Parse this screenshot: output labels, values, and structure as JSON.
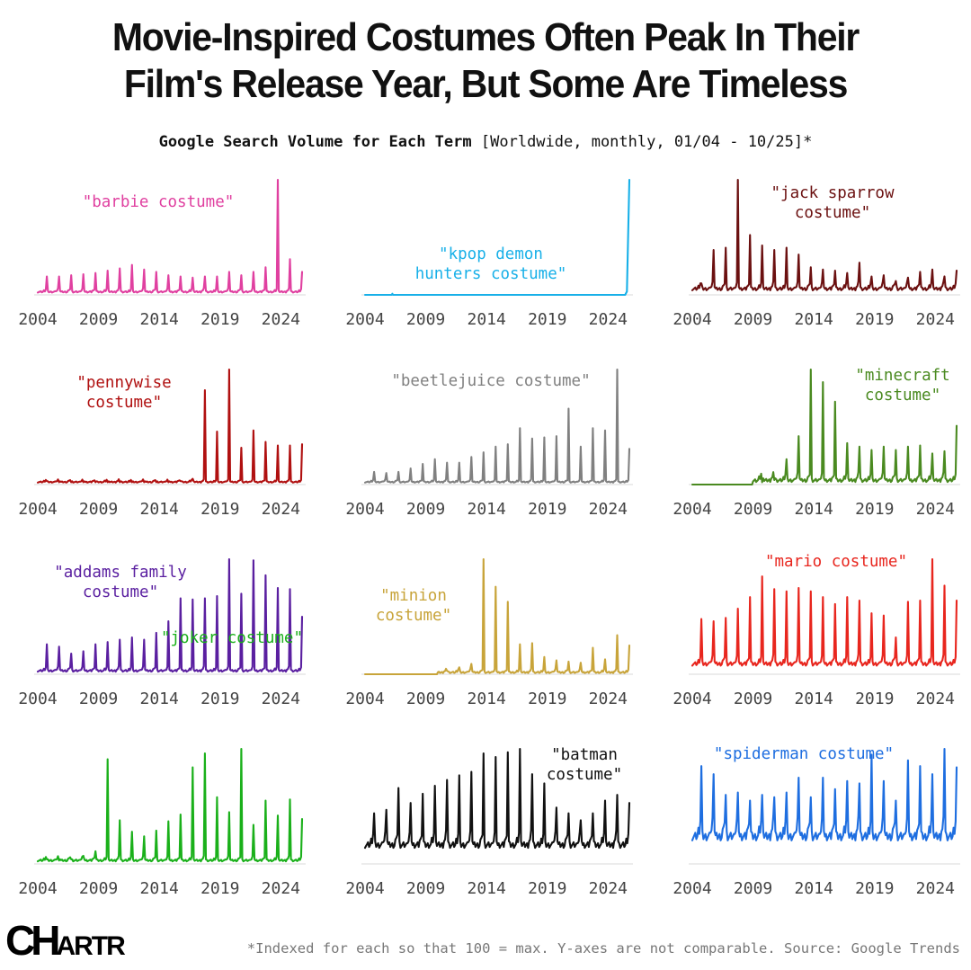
{
  "header": {
    "title_line1": "Movie-Inspired Costumes Often Peak In Their",
    "title_line2": "Film's Release Year, But Some Are Timeless",
    "subtitle_bold": "Google Search Volume for Each Term",
    "subtitle_rest": "[Worldwide, monthly, 01/04 - 10/25]*"
  },
  "footer": {
    "logo_lead": "CH",
    "logo_tail": "ARTR",
    "note": "*Indexed for each so that 100 = max. Y-axes are not comparable. Source: Google Trends"
  },
  "chart_data": [
    {
      "type": "line",
      "title": "\"barbie costume\"",
      "label_lines": [
        "\"barbie costume\""
      ],
      "color": "#e040a0",
      "x": [
        2004,
        2024.5,
        2025.8
      ],
      "ylim": [
        0,
        100
      ],
      "baseline_value": 1,
      "seasonal": true,
      "x_ticks": [
        2004,
        2009,
        2014,
        2019,
        2024
      ],
      "peaks": [
        [
          2004,
          16
        ],
        [
          2005,
          16
        ],
        [
          2006,
          17
        ],
        [
          2007,
          18
        ],
        [
          2008,
          19
        ],
        [
          2009,
          21
        ],
        [
          2010,
          23
        ],
        [
          2011,
          26
        ],
        [
          2012,
          22
        ],
        [
          2013,
          20
        ],
        [
          2014,
          17
        ],
        [
          2015,
          16
        ],
        [
          2016,
          15
        ],
        [
          2017,
          16
        ],
        [
          2018,
          16
        ],
        [
          2019,
          20
        ],
        [
          2020,
          17
        ],
        [
          2021,
          20
        ],
        [
          2022,
          24
        ],
        [
          2023,
          100
        ],
        [
          2024,
          31
        ],
        [
          2025,
          20
        ]
      ],
      "bump": 4
    },
    {
      "type": "line",
      "title": "\"kpop demon hunters costume\"",
      "label_lines": [
        "\"kpop demon",
        "hunters costume\""
      ],
      "color": "#18b0e8",
      "x": [
        2004,
        2025.8
      ],
      "ylim": [
        0,
        100
      ],
      "baseline_value": 0,
      "seasonal": false,
      "x_ticks": [
        2004,
        2009,
        2014,
        2019,
        2024
      ],
      "peaks": [
        [
          2025.8,
          100
        ]
      ],
      "bump": 0
    },
    {
      "type": "line",
      "title": "\"jack sparrow costume\"",
      "label_lines": [
        "\"jack sparrow",
        "costume\""
      ],
      "color": "#6b1010",
      "x": [
        2004,
        2025.8
      ],
      "ylim": [
        0,
        100
      ],
      "baseline_value": 2,
      "seasonal": true,
      "x_ticks": [
        2004,
        2009,
        2014,
        2019,
        2024
      ],
      "peaks": [
        [
          2004,
          10
        ],
        [
          2005,
          39
        ],
        [
          2006,
          41
        ],
        [
          2007,
          100
        ],
        [
          2008,
          52
        ],
        [
          2009,
          43
        ],
        [
          2010,
          39
        ],
        [
          2011,
          41
        ],
        [
          2012,
          35
        ],
        [
          2013,
          24
        ],
        [
          2014,
          22
        ],
        [
          2015,
          21
        ],
        [
          2016,
          19
        ],
        [
          2017,
          28
        ],
        [
          2018,
          16
        ],
        [
          2019,
          17
        ],
        [
          2020,
          12
        ],
        [
          2021,
          15
        ],
        [
          2022,
          20
        ],
        [
          2023,
          22
        ],
        [
          2024,
          16
        ],
        [
          2025,
          21
        ]
      ],
      "bump": 8
    },
    {
      "type": "line",
      "title": "\"pennywise costume\"",
      "label_lines": [
        "\"pennywise",
        "costume\""
      ],
      "color": "#b01010",
      "x": [
        2004,
        2025.8
      ],
      "ylim": [
        0,
        100
      ],
      "baseline_value": 1,
      "seasonal": true,
      "x_ticks": [
        2004,
        2009,
        2014,
        2019,
        2024
      ],
      "peaks": [
        [
          2004,
          3
        ],
        [
          2005,
          2
        ],
        [
          2006,
          2
        ],
        [
          2007,
          2
        ],
        [
          2008,
          2
        ],
        [
          2009,
          2
        ],
        [
          2010,
          2
        ],
        [
          2011,
          2
        ],
        [
          2012,
          2
        ],
        [
          2013,
          2
        ],
        [
          2014,
          2
        ],
        [
          2015,
          3
        ],
        [
          2016,
          5
        ],
        [
          2017,
          82
        ],
        [
          2018,
          46
        ],
        [
          2019,
          100
        ],
        [
          2020,
          32
        ],
        [
          2021,
          47
        ],
        [
          2022,
          37
        ],
        [
          2023,
          34
        ],
        [
          2024,
          34
        ],
        [
          2025,
          35
        ]
      ],
      "bump": 3
    },
    {
      "type": "line",
      "title": "\"beetlejuice costume\"",
      "label_lines": [
        "\"beetlejuice costume\""
      ],
      "color": "#808080",
      "x": [
        2004,
        2025.8
      ],
      "ylim": [
        0,
        100
      ],
      "baseline_value": 1,
      "seasonal": true,
      "x_ticks": [
        2004,
        2009,
        2014,
        2019,
        2024
      ],
      "peaks": [
        [
          2004,
          11
        ],
        [
          2005,
          10
        ],
        [
          2006,
          11
        ],
        [
          2007,
          14
        ],
        [
          2008,
          18
        ],
        [
          2009,
          22
        ],
        [
          2010,
          19
        ],
        [
          2011,
          19
        ],
        [
          2012,
          24
        ],
        [
          2013,
          28
        ],
        [
          2014,
          33
        ],
        [
          2015,
          35
        ],
        [
          2016,
          49
        ],
        [
          2017,
          40
        ],
        [
          2018,
          41
        ],
        [
          2019,
          42
        ],
        [
          2020,
          66
        ],
        [
          2021,
          33
        ],
        [
          2022,
          49
        ],
        [
          2023,
          47
        ],
        [
          2024,
          100
        ],
        [
          2025,
          31
        ]
      ],
      "bump": 3
    },
    {
      "type": "line",
      "title": "\"minecraft costume\"",
      "label_lines": [
        "\"minecraft",
        "costume\""
      ],
      "color": "#4a8a20",
      "x": [
        2004,
        2025.8
      ],
      "ylim": [
        0,
        100
      ],
      "baseline_value": 0,
      "seasonal": true,
      "x_ticks": [
        2004,
        2009,
        2014,
        2019,
        2024
      ],
      "peaks": [
        [
          2009,
          2
        ],
        [
          2010,
          4
        ],
        [
          2011,
          22
        ],
        [
          2012,
          42
        ],
        [
          2013,
          100
        ],
        [
          2014,
          89
        ],
        [
          2015,
          72
        ],
        [
          2016,
          36
        ],
        [
          2017,
          33
        ],
        [
          2018,
          30
        ],
        [
          2019,
          33
        ],
        [
          2020,
          30
        ],
        [
          2021,
          33
        ],
        [
          2022,
          34
        ],
        [
          2023,
          27
        ],
        [
          2024,
          29
        ],
        [
          2025,
          51
        ]
      ],
      "bump": 9
    },
    {
      "type": "line",
      "title": "\"addams family costume\"",
      "label_lines": [
        "\"addams family",
        "costume\""
      ],
      "color": "#5a1fa0",
      "x": [
        2004,
        2025.8
      ],
      "ylim": [
        0,
        100
      ],
      "baseline_value": 1,
      "seasonal": true,
      "x_ticks": [
        2004,
        2009,
        2014,
        2019,
        2024
      ],
      "peaks": [
        [
          2004,
          26
        ],
        [
          2005,
          24
        ],
        [
          2006,
          18
        ],
        [
          2007,
          20
        ],
        [
          2008,
          26
        ],
        [
          2009,
          28
        ],
        [
          2010,
          30
        ],
        [
          2011,
          32
        ],
        [
          2012,
          30
        ],
        [
          2013,
          36
        ],
        [
          2014,
          46
        ],
        [
          2015,
          66
        ],
        [
          2016,
          65
        ],
        [
          2017,
          66
        ],
        [
          2018,
          68
        ],
        [
          2019,
          100
        ],
        [
          2020,
          70
        ],
        [
          2021,
          99
        ],
        [
          2022,
          86
        ],
        [
          2023,
          75
        ],
        [
          2024,
          74
        ],
        [
          2025,
          50
        ]
      ],
      "bump": 5
    },
    {
      "type": "line",
      "title": "\"minion costume\"",
      "label_lines": [
        "\"minion",
        "costume\""
      ],
      "color": "#c8a43a",
      "x": [
        2004,
        2025.8
      ],
      "ylim": [
        0,
        100
      ],
      "baseline_value": 0,
      "seasonal": true,
      "x_ticks": [
        2004,
        2009,
        2014,
        2019,
        2024
      ],
      "peaks": [
        [
          2010,
          3
        ],
        [
          2011,
          6
        ],
        [
          2012,
          9
        ],
        [
          2013,
          100
        ],
        [
          2014,
          76
        ],
        [
          2015,
          63
        ],
        [
          2016,
          26
        ],
        [
          2017,
          27
        ],
        [
          2018,
          15
        ],
        [
          2019,
          12
        ],
        [
          2020,
          11
        ],
        [
          2021,
          10
        ],
        [
          2022,
          23
        ],
        [
          2023,
          13
        ],
        [
          2024,
          34
        ],
        [
          2025,
          25
        ]
      ],
      "bump": 4
    },
    {
      "type": "line",
      "title": "\"mario costume\"",
      "label_lines": [
        "\"mario costume\""
      ],
      "color": "#e8261e",
      "x": [
        2004,
        2025.8
      ],
      "ylim": [
        0,
        100
      ],
      "baseline_value": 5,
      "seasonal": true,
      "x_ticks": [
        2004,
        2009,
        2014,
        2019,
        2024
      ],
      "peaks": [
        [
          2004,
          48
        ],
        [
          2005,
          46
        ],
        [
          2006,
          49
        ],
        [
          2007,
          57
        ],
        [
          2008,
          67
        ],
        [
          2009,
          85
        ],
        [
          2010,
          74
        ],
        [
          2011,
          72
        ],
        [
          2012,
          75
        ],
        [
          2013,
          72
        ],
        [
          2014,
          67
        ],
        [
          2015,
          61
        ],
        [
          2016,
          67
        ],
        [
          2017,
          64
        ],
        [
          2018,
          53
        ],
        [
          2019,
          51
        ],
        [
          2020,
          32
        ],
        [
          2021,
          63
        ],
        [
          2022,
          64
        ],
        [
          2023,
          100
        ],
        [
          2024,
          77
        ],
        [
          2025,
          64
        ]
      ],
      "bump": 10
    },
    {
      "type": "line",
      "title": "\"joker costume\"",
      "label_lines": [
        "\"joker costume\""
      ],
      "color": "#1ab01a",
      "x": [
        2004,
        2025.8
      ],
      "ylim": [
        0,
        100
      ],
      "baseline_value": 1,
      "seasonal": true,
      "x_ticks": [
        2004,
        2009,
        2014,
        2019,
        2024
      ],
      "peaks": [
        [
          2004,
          4
        ],
        [
          2005,
          3
        ],
        [
          2006,
          4
        ],
        [
          2007,
          7
        ],
        [
          2008,
          11
        ],
        [
          2009,
          91
        ],
        [
          2010,
          38
        ],
        [
          2011,
          28
        ],
        [
          2012,
          24
        ],
        [
          2013,
          29
        ],
        [
          2014,
          37
        ],
        [
          2015,
          43
        ],
        [
          2016,
          84
        ],
        [
          2017,
          96
        ],
        [
          2018,
          58
        ],
        [
          2019,
          45
        ],
        [
          2020,
          100
        ],
        [
          2021,
          34
        ],
        [
          2022,
          55
        ],
        [
          2023,
          42
        ],
        [
          2024,
          56
        ],
        [
          2025,
          39
        ]
      ],
      "bump": 5
    },
    {
      "type": "line",
      "title": "\"batman costume\"",
      "label_lines": [
        "\"batman",
        "costume\""
      ],
      "color": "#111111",
      "x": [
        2004,
        2025.8
      ],
      "ylim": [
        0,
        100
      ],
      "baseline_value": 10,
      "seasonal": true,
      "x_ticks": [
        2004,
        2009,
        2014,
        2019,
        2024
      ],
      "peaks": [
        [
          2004,
          44
        ],
        [
          2005,
          47
        ],
        [
          2006,
          66
        ],
        [
          2007,
          53
        ],
        [
          2008,
          61
        ],
        [
          2009,
          68
        ],
        [
          2010,
          73
        ],
        [
          2011,
          77
        ],
        [
          2012,
          80
        ],
        [
          2013,
          96
        ],
        [
          2014,
          93
        ],
        [
          2015,
          97
        ],
        [
          2016,
          100
        ],
        [
          2017,
          78
        ],
        [
          2018,
          70
        ],
        [
          2019,
          49
        ],
        [
          2020,
          44
        ],
        [
          2021,
          38
        ],
        [
          2022,
          44
        ],
        [
          2023,
          55
        ],
        [
          2024,
          60
        ],
        [
          2025,
          53
        ]
      ],
      "bump": 16
    },
    {
      "type": "line",
      "title": "\"spiderman costume\"",
      "label_lines": [
        "\"spiderman costume\""
      ],
      "color": "#1e6ee0",
      "x": [
        2004,
        2025.8
      ],
      "ylim": [
        0,
        100
      ],
      "baseline_value": 15,
      "seasonal": true,
      "x_ticks": [
        2004,
        2009,
        2014,
        2019,
        2024
      ],
      "peaks": [
        [
          2004,
          85
        ],
        [
          2005,
          78
        ],
        [
          2006,
          60
        ],
        [
          2007,
          62
        ],
        [
          2008,
          55
        ],
        [
          2009,
          60
        ],
        [
          2010,
          58
        ],
        [
          2011,
          62
        ],
        [
          2012,
          75
        ],
        [
          2013,
          58
        ],
        [
          2014,
          75
        ],
        [
          2015,
          65
        ],
        [
          2016,
          72
        ],
        [
          2017,
          70
        ],
        [
          2018,
          95
        ],
        [
          2019,
          72
        ],
        [
          2020,
          55
        ],
        [
          2021,
          90
        ],
        [
          2022,
          85
        ],
        [
          2023,
          78
        ],
        [
          2024,
          100
        ],
        [
          2025,
          84
        ]
      ],
      "bump": 22
    }
  ]
}
